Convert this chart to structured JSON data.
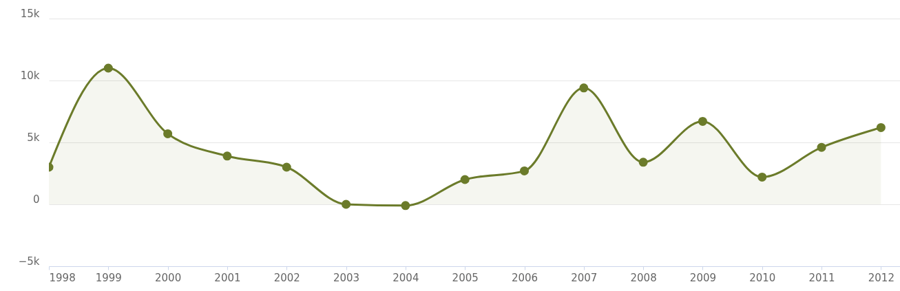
{
  "chart_data": {
    "type": "area",
    "x": [
      1998,
      1999,
      2000,
      2001,
      2002,
      2003,
      2004,
      2005,
      2006,
      2007,
      2008,
      2009,
      2010,
      2011,
      2012
    ],
    "series": [
      {
        "color": "#6b7b2a",
        "values": [
          3000,
          11000,
          5700,
          3900,
          3000,
          0,
          -100,
          2000,
          2700,
          9400,
          3400,
          6700,
          2200,
          4600,
          6200
        ]
      }
    ],
    "xlim": [
      1998,
      2012.32
    ],
    "xticks": [
      1998,
      1999,
      2000,
      2001,
      2002,
      2003,
      2004,
      2005,
      2006,
      2007,
      2008,
      2009,
      2010,
      2011,
      2012
    ],
    "ylim": [
      -5000,
      15000
    ],
    "yticks": [
      {
        "value": -5000,
        "label": "−5k"
      },
      {
        "value": 0,
        "label": "0"
      },
      {
        "value": 5000,
        "label": "5k"
      },
      {
        "value": 10000,
        "label": "10k"
      },
      {
        "value": 15000,
        "label": "15k"
      }
    ],
    "grid": "y",
    "marker": "circle"
  }
}
